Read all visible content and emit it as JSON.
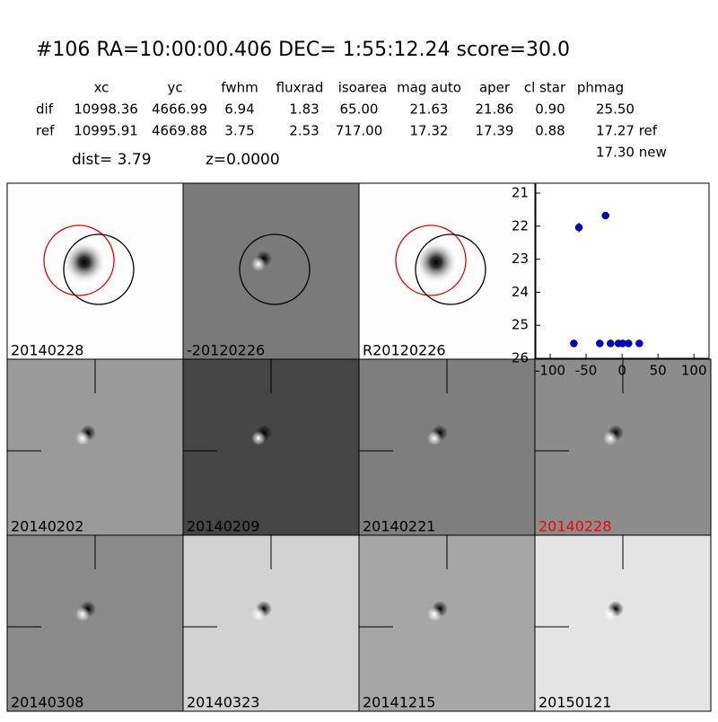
{
  "header": {
    "title": "#106   RA=10:00:00.406 DEC= 1:55:12.24       score=30.0",
    "columns": [
      "xc",
      "yc",
      "fwhm",
      "fluxrad",
      "isoarea",
      "mag auto",
      "aper",
      "cl star",
      "phmag"
    ],
    "rows": [
      [
        "dif",
        "10998.36",
        "4666.99",
        "6.94",
        "1.83",
        "65.00",
        "21.63",
        "21.86",
        "0.90",
        "25.50"
      ],
      [
        "ref",
        "10995.91",
        "4669.88",
        "3.75",
        "2.53",
        "717.00",
        "17.32",
        "17.39",
        "0.88",
        "17.27 ref"
      ]
    ],
    "extra": "17.30 new",
    "dist": "dist=  3.79",
    "z": "z=0.0000"
  },
  "panels": [
    {
      "label": "20140228",
      "color": "#000000"
    },
    {
      "label": "-20120226",
      "color": "#000000"
    },
    {
      "label": "R20120226",
      "color": "#000000"
    },
    {
      "label": "20140202",
      "color": "#000000"
    },
    {
      "label": "20140209",
      "color": "#000000"
    },
    {
      "label": "20140221",
      "color": "#000000"
    },
    {
      "label": "20140228",
      "color": "#ff0000"
    },
    {
      "label": "20140308",
      "color": "#000000"
    },
    {
      "label": "20140323",
      "color": "#000000"
    },
    {
      "label": "20141215",
      "color": "#000000"
    },
    {
      "label": "20150121",
      "color": "#000000"
    }
  ],
  "chart_data": {
    "type": "scatter",
    "color": "#0000cc",
    "x": [
      -60,
      -23,
      -67,
      -31,
      -16,
      -5,
      1,
      9,
      24
    ],
    "values": [
      22.04,
      21.68,
      25.55,
      25.55,
      25.55,
      25.55,
      25.55,
      25.55,
      25.55
    ],
    "errors": [
      0.15,
      0.07,
      0.05,
      0.05,
      0.05,
      0.05,
      0.05,
      0.05,
      0.05
    ],
    "xlim": [
      -120,
      121
    ],
    "ylim": [
      20.7,
      26
    ],
    "invert_y": true,
    "xticks": [
      -100,
      -50,
      0,
      50,
      100
    ],
    "yticks": [
      21,
      22,
      23,
      24,
      25,
      26
    ]
  }
}
